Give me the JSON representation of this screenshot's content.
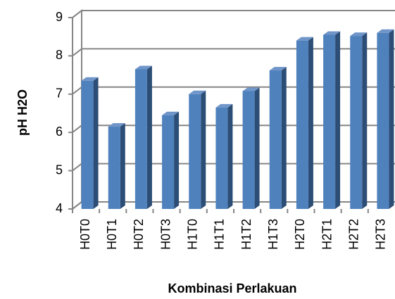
{
  "chart_data": {
    "type": "bar3d",
    "x_label": "Kombinasi Perlakuan",
    "y_label": "pH H2O",
    "categories": [
      "H0T0",
      "H0T1",
      "H0T2",
      "H0T3",
      "H1T0",
      "H1T1",
      "H1T2",
      "H1T3",
      "H2T0",
      "H2T1",
      "H2T2",
      "H2T3"
    ],
    "values": [
      7.35,
      6.15,
      7.65,
      6.45,
      7.0,
      6.65,
      7.08,
      7.62,
      8.4,
      8.55,
      8.52,
      8.6
    ],
    "color": "#4f81bd",
    "ylim": [
      4,
      9
    ],
    "yticks": [
      4,
      5,
      6,
      7,
      8,
      9
    ],
    "grid": true
  }
}
